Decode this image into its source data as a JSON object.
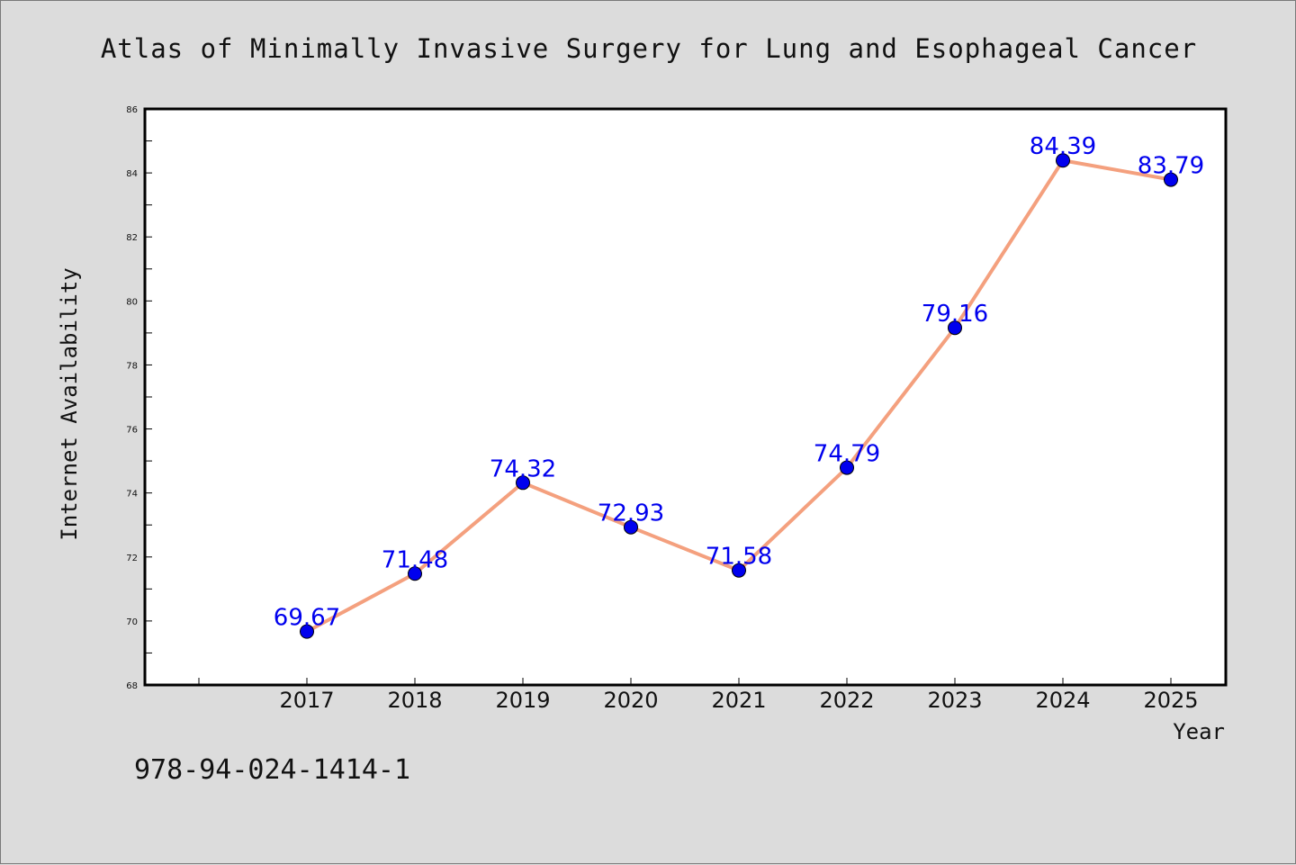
{
  "chart_data": {
    "type": "line",
    "title": "Atlas of Minimally Invasive Surgery for Lung and Esophageal Cancer",
    "xlabel": "Year",
    "ylabel": "Internet Availability",
    "x": [
      "2017",
      "2018",
      "2019",
      "2020",
      "2021",
      "2022",
      "2023",
      "2024",
      "2025"
    ],
    "values": [
      69.67,
      71.48,
      74.32,
      72.93,
      71.58,
      74.79,
      79.16,
      84.39,
      83.79
    ],
    "data_labels": [
      "69.67",
      "71.48",
      "74.32",
      "72.93",
      "71.58",
      "74.79",
      "79.16",
      "84.39",
      "83.79"
    ],
    "ylim": [
      68,
      86
    ],
    "yticks": [
      "68",
      "70",
      "72",
      "74",
      "76",
      "78",
      "80",
      "82",
      "84",
      "86"
    ],
    "grid": false,
    "legend": "none",
    "line_color": "#f4a07e",
    "marker_color": "#0000ee",
    "label_color": "#0000ee"
  },
  "footer": {
    "isbn": "978-94-024-1414-1"
  }
}
